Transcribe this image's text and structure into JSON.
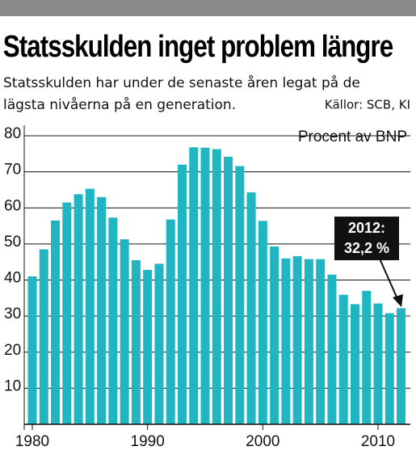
{
  "chart_data": {
    "type": "bar",
    "title": "Statsskulden inget problem längre",
    "subtitle": [
      "Statsskulden har under de senaste åren legat på de",
      "lägsta nivåerna på en generation."
    ],
    "source": "Källor: SCB, KI",
    "y_label": "Procent av BNP",
    "annotation": [
      "2012:",
      "32,2 %"
    ],
    "x": [
      1980,
      1981,
      1982,
      1983,
      1984,
      1985,
      1986,
      1987,
      1988,
      1989,
      1990,
      1991,
      1992,
      1993,
      1994,
      1995,
      1996,
      1997,
      1998,
      1999,
      2000,
      2001,
      2002,
      2003,
      2004,
      2005,
      2006,
      2007,
      2008,
      2009,
      2010,
      2011,
      2012
    ],
    "values": [
      41,
      48.5,
      56.5,
      61.5,
      63.8,
      65.3,
      63,
      57.3,
      51.3,
      45.5,
      42.8,
      44.5,
      56.8,
      72,
      76.8,
      76.7,
      76.3,
      74.2,
      71.6,
      64.3,
      56.4,
      49.3,
      46,
      46.6,
      45.8,
      45.8,
      41.5,
      35.9,
      33.3,
      37,
      33.5,
      30.8,
      32.2
    ],
    "color": "#1fb5c1",
    "xlim": [
      1979.3,
      2012.6
    ],
    "xticks": [
      1980,
      1990,
      2000,
      2010
    ],
    "ylim": [
      0,
      80
    ],
    "yticks": [
      10,
      20,
      30,
      40,
      50,
      60,
      70,
      80
    ],
    "grid": true
  }
}
